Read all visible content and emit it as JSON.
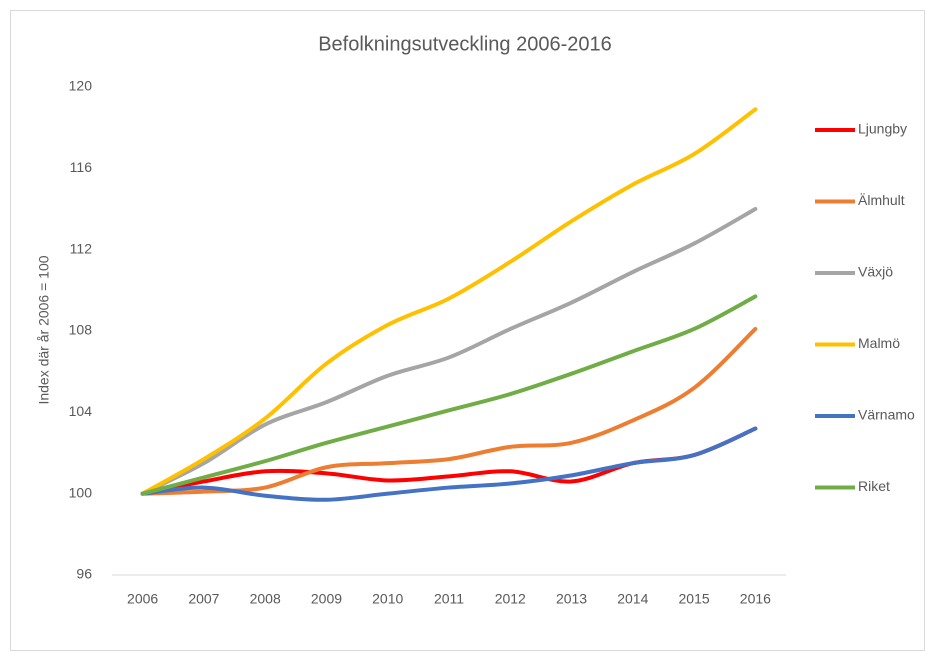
{
  "chart_data": {
    "type": "line",
    "title": "Befolkningsutveckling 2006-2016",
    "y_label": "Index där år 2006 = 100",
    "categories": [
      "2006",
      "2007",
      "2008",
      "2009",
      "2010",
      "2011",
      "2012",
      "2013",
      "2014",
      "2015",
      "2016"
    ],
    "ylim": [
      96,
      120
    ],
    "yticks": [
      96,
      100,
      104,
      108,
      112,
      116,
      120
    ],
    "grid": false,
    "legend": "right",
    "series": [
      {
        "name": "Ljungby",
        "color": "#ff0000",
        "values": [
          100,
          100.6,
          101.1,
          101.0,
          100.65,
          100.85,
          101.1,
          100.6,
          101.5,
          101.9,
          103.2
        ]
      },
      {
        "name": "Älmhult",
        "color": "#ed7d31",
        "values": [
          100,
          100.1,
          100.3,
          101.3,
          101.5,
          101.7,
          102.3,
          102.5,
          103.6,
          105.2,
          108.1
        ]
      },
      {
        "name": "Växjö",
        "color": "#a5a5a5",
        "values": [
          100,
          101.5,
          103.4,
          104.5,
          105.8,
          106.7,
          108.1,
          109.4,
          110.9,
          112.3,
          114.0
        ]
      },
      {
        "name": "Malmö",
        "color": "#ffc000",
        "values": [
          100,
          101.7,
          103.7,
          106.4,
          108.3,
          109.6,
          111.4,
          113.4,
          115.2,
          116.7,
          118.9
        ]
      },
      {
        "name": "Värnamo",
        "color": "#4472c4",
        "values": [
          100,
          100.3,
          99.9,
          99.7,
          100.0,
          100.3,
          100.5,
          100.9,
          101.5,
          101.9,
          103.2
        ]
      },
      {
        "name": "Riket",
        "color": "#70ad47",
        "values": [
          100,
          100.8,
          101.6,
          102.5,
          103.3,
          104.1,
          104.9,
          105.9,
          107.0,
          108.1,
          109.7
        ]
      }
    ]
  }
}
